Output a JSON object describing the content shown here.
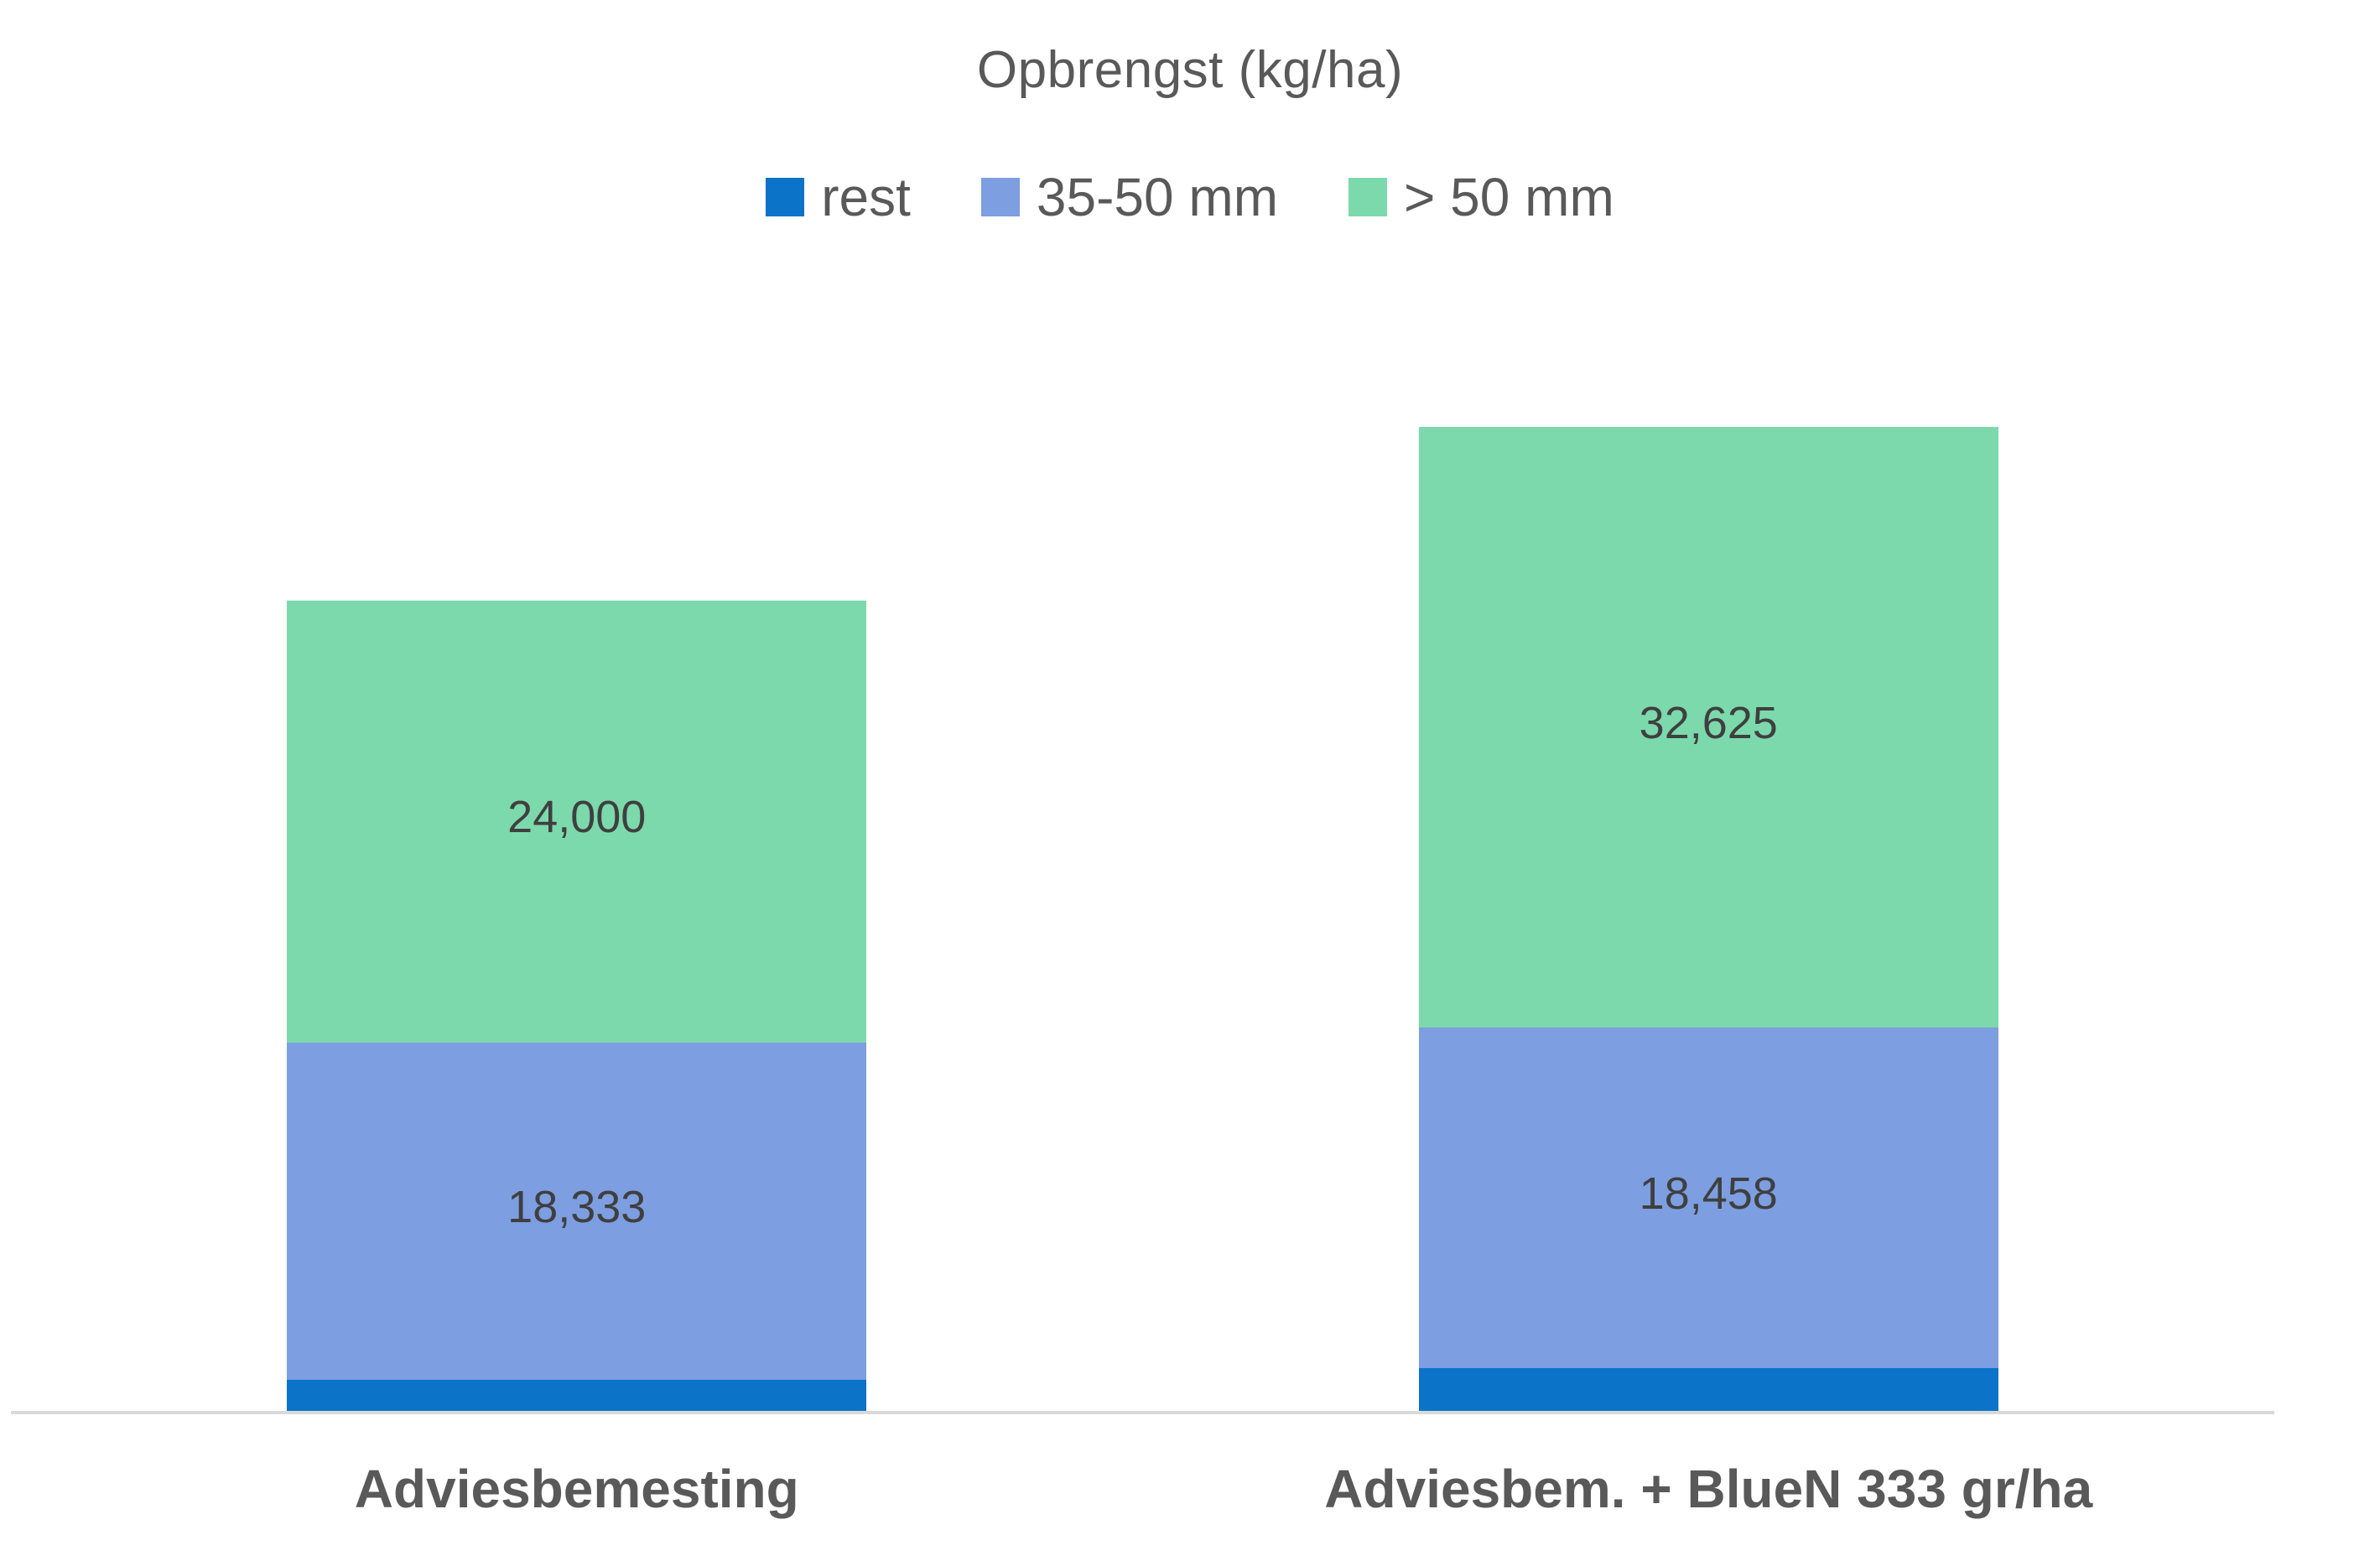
{
  "chart_data": {
    "type": "bar",
    "stacked": true,
    "title": "Opbrengst (kg/ha)",
    "categories": [
      "Adviesbemesting",
      "Adviesbem. + BlueN 333 gr/ha"
    ],
    "series": [
      {
        "name": "rest",
        "color": "#0b73c8",
        "values": [
          1667,
          2333
        ],
        "labels": [
          "",
          ""
        ]
      },
      {
        "name": "35-50 mm",
        "color": "#7d9ee0",
        "values": [
          18333,
          18458
        ],
        "labels": [
          "18,333",
          "18,458"
        ]
      },
      {
        "name": "> 50 mm",
        "color": "#7cd9ac",
        "values": [
          24000,
          32625
        ],
        "labels": [
          "24,000",
          "32,625"
        ]
      }
    ],
    "totals": [
      44000,
      53416
    ],
    "ylim": [
      0,
      76600
    ],
    "grid": false,
    "legend_position": "top",
    "legend_entries": [
      "rest",
      "35-50 mm",
      "> 50 mm"
    ],
    "colors": {
      "rest": "#0b73c8",
      "mid": "#7d9ee0",
      "large": "#7cd9ac",
      "axis_line": "#d9d9d9",
      "title_text": "#595959",
      "value_text": "#3f3f3f",
      "category_text": "#595959"
    }
  }
}
